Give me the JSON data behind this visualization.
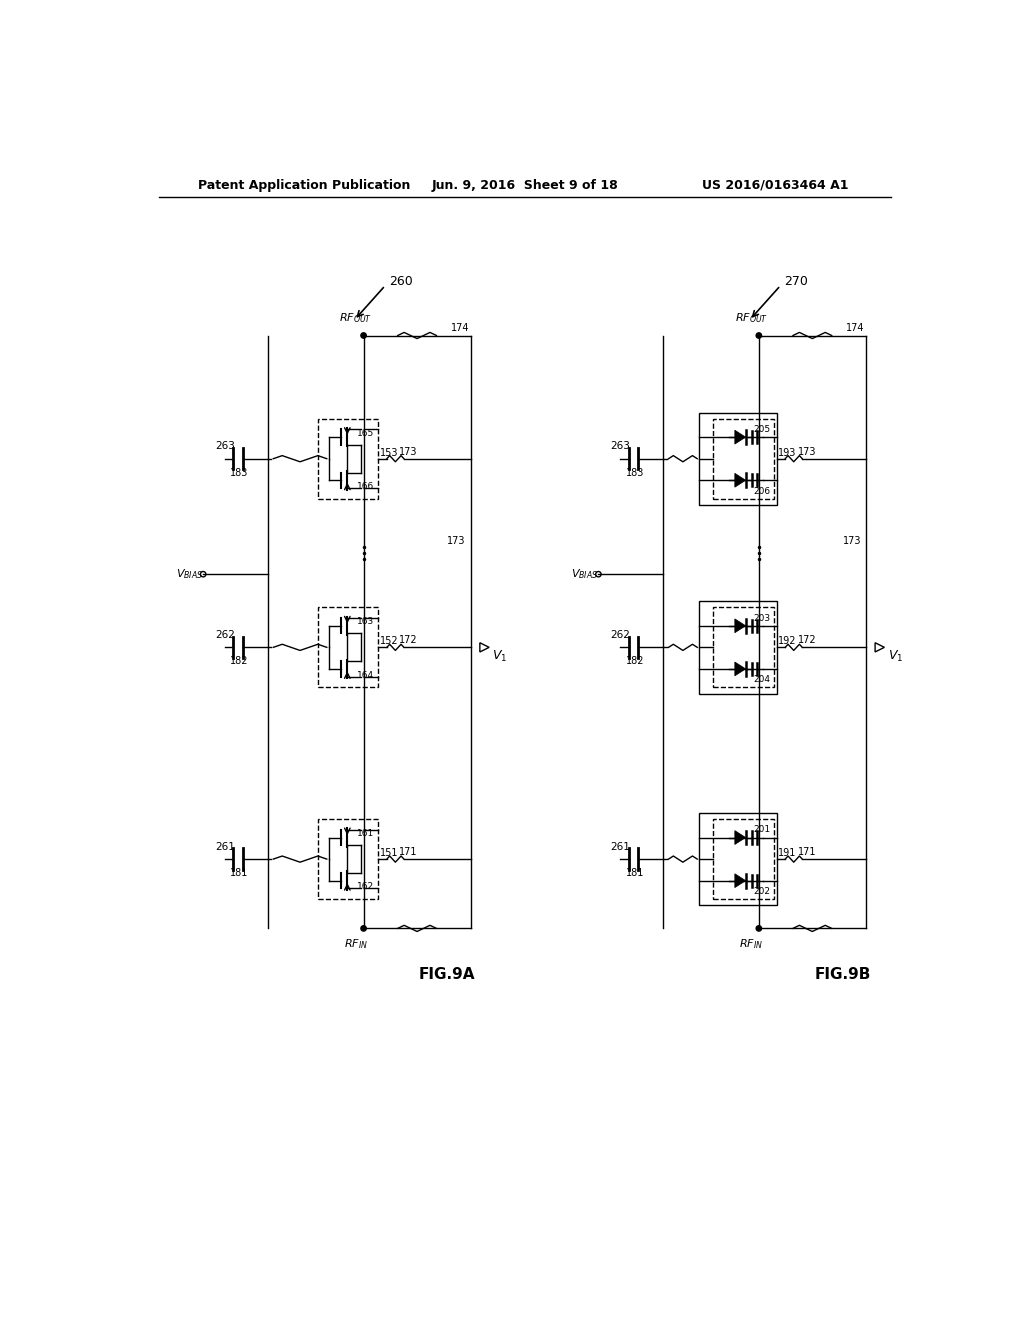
{
  "page_title_left": "Patent Application Publication",
  "page_title_center": "Jun. 9, 2016  Sheet 9 of 18",
  "page_title_right": "US 2016/0163464 A1",
  "fig_a_label": "FIG.9A",
  "fig_b_label": "FIG.9B",
  "fig_a_number": "260",
  "fig_b_number": "270",
  "background": "#ffffff",
  "line_color": "#000000"
}
